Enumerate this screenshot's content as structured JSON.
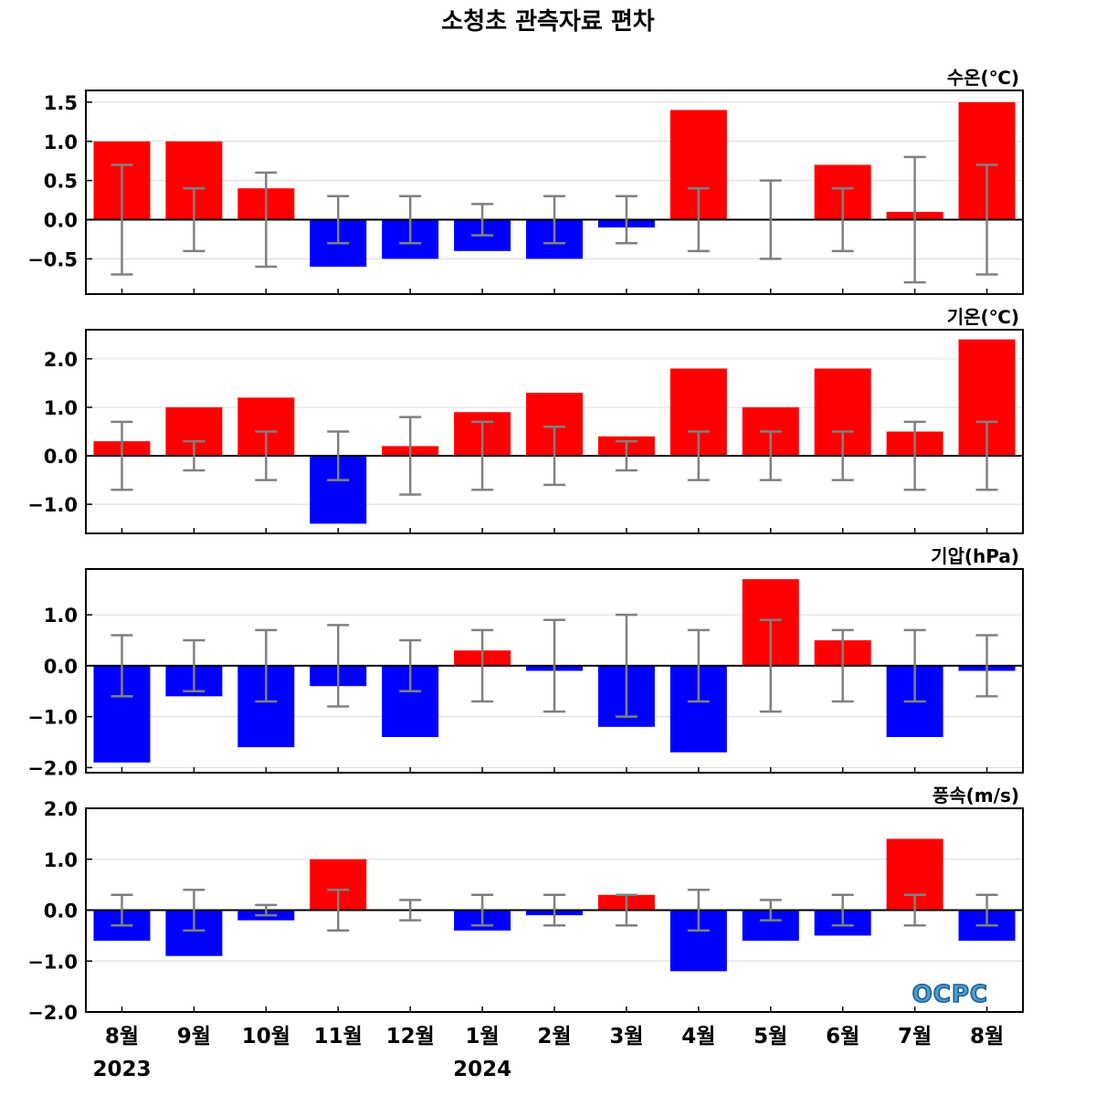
{
  "chart_data": {
    "type": "bar",
    "title": "소청초 관측자료 편차",
    "categories": [
      "8월",
      "9월",
      "10월",
      "11월",
      "12월",
      "1월",
      "2월",
      "3월",
      "4월",
      "5월",
      "6월",
      "7월",
      "8월"
    ],
    "year_labels": [
      {
        "text": "2023",
        "category_index": 0
      },
      {
        "text": "2024",
        "category_index": 5
      }
    ],
    "colors": {
      "positive": "#ff0000",
      "negative": "#0000ff",
      "error_bar": "#808080",
      "zero_line": "#000000"
    },
    "grid": true,
    "logo": "OCPC",
    "panels": [
      {
        "unit": "수온(℃)",
        "ylim": [
          -0.95,
          1.65
        ],
        "ticks": [
          1.5,
          1.0,
          0.5,
          0.0,
          -0.5
        ],
        "tick_labels": [
          "1.5",
          "1.0",
          "0.5",
          "0.0",
          "−0.5"
        ],
        "values": [
          1.0,
          1.0,
          0.4,
          -0.6,
          -0.5,
          -0.4,
          -0.5,
          -0.1,
          1.4,
          0.0,
          0.7,
          0.1,
          1.5
        ],
        "error": [
          0.7,
          0.4,
          0.6,
          0.3,
          0.3,
          0.2,
          0.3,
          0.3,
          0.4,
          0.5,
          0.4,
          0.8,
          0.7
        ]
      },
      {
        "unit": "기온(℃)",
        "ylim": [
          -1.6,
          2.6
        ],
        "ticks": [
          2.0,
          1.0,
          0.0,
          -1.0
        ],
        "tick_labels": [
          "2.0",
          "1.0",
          "0.0",
          "−1.0"
        ],
        "values": [
          0.3,
          1.0,
          1.2,
          -1.4,
          0.2,
          0.9,
          1.3,
          0.4,
          1.8,
          1.0,
          1.8,
          0.5,
          2.4
        ],
        "error": [
          0.7,
          0.3,
          0.5,
          0.5,
          0.8,
          0.7,
          0.6,
          0.3,
          0.5,
          0.5,
          0.5,
          0.7,
          0.7
        ]
      },
      {
        "unit": "기압(hPa)",
        "ylim": [
          -2.1,
          1.9
        ],
        "ticks": [
          1.0,
          0.0,
          -1.0,
          -2.0
        ],
        "tick_labels": [
          "1.0",
          "0.0",
          "−1.0",
          "−2.0"
        ],
        "values": [
          -1.9,
          -0.6,
          -1.6,
          -0.4,
          -1.4,
          0.3,
          -0.1,
          -1.2,
          -1.7,
          1.7,
          0.5,
          -1.4,
          -0.1
        ],
        "error": [
          0.6,
          0.5,
          0.7,
          0.8,
          0.5,
          0.7,
          0.9,
          1.0,
          0.7,
          0.9,
          0.7,
          0.7,
          0.6
        ]
      },
      {
        "unit": "풍속(m/s)",
        "ylim": [
          -2.0,
          2.0
        ],
        "ticks": [
          2.0,
          1.0,
          0.0,
          -1.0,
          -2.0
        ],
        "tick_labels": [
          "2.0",
          "1.0",
          "0.0",
          "−1.0",
          "−2.0"
        ],
        "values": [
          -0.6,
          -0.9,
          -0.2,
          1.0,
          0.0,
          -0.4,
          -0.1,
          0.3,
          -1.2,
          -0.6,
          -0.5,
          1.4,
          -0.6
        ],
        "error": [
          0.3,
          0.4,
          0.1,
          0.4,
          0.2,
          0.3,
          0.3,
          0.3,
          0.4,
          0.2,
          0.3,
          0.3,
          0.3
        ]
      }
    ]
  }
}
